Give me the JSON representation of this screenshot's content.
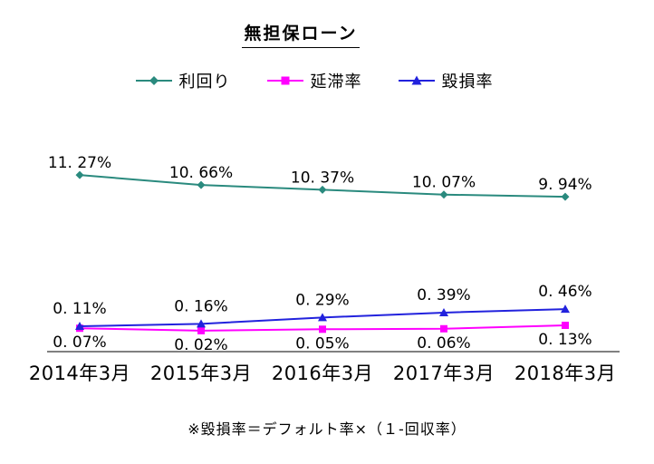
{
  "chart_data": {
    "type": "line",
    "title": "無担保ローン",
    "unit": "%",
    "grid": false,
    "legend_position": "top",
    "y_axis_visible": false,
    "categories": [
      "2014年3月",
      "2015年3月",
      "2016年3月",
      "2017年3月",
      "2018年3月"
    ],
    "series": [
      {
        "name": "利回り",
        "values": [
          11.27,
          10.66,
          10.37,
          10.07,
          9.94
        ],
        "labels": [
          "11. 27%",
          "10. 66%",
          "10. 37%",
          "10. 07%",
          "9. 94%"
        ],
        "color": "#2a8a7e",
        "marker": "diamond",
        "label_position": "above"
      },
      {
        "name": "延滞率",
        "values": [
          0.07,
          0.02,
          0.05,
          0.06,
          0.13
        ],
        "labels": [
          "0. 07%",
          "0. 02%",
          "0. 05%",
          "0. 06%",
          "0. 13%"
        ],
        "color": "#ff00ff",
        "marker": "square",
        "label_position": "below"
      },
      {
        "name": "毀損率",
        "values": [
          0.11,
          0.16,
          0.29,
          0.39,
          0.46
        ],
        "labels": [
          "0. 11%",
          "0. 16%",
          "0. 29%",
          "0. 39%",
          "0. 46%"
        ],
        "color": "#2222dd",
        "marker": "triangle",
        "label_position": "above"
      }
    ],
    "footnote": "※毀損率＝デフォルト率×（１-回収率）"
  }
}
